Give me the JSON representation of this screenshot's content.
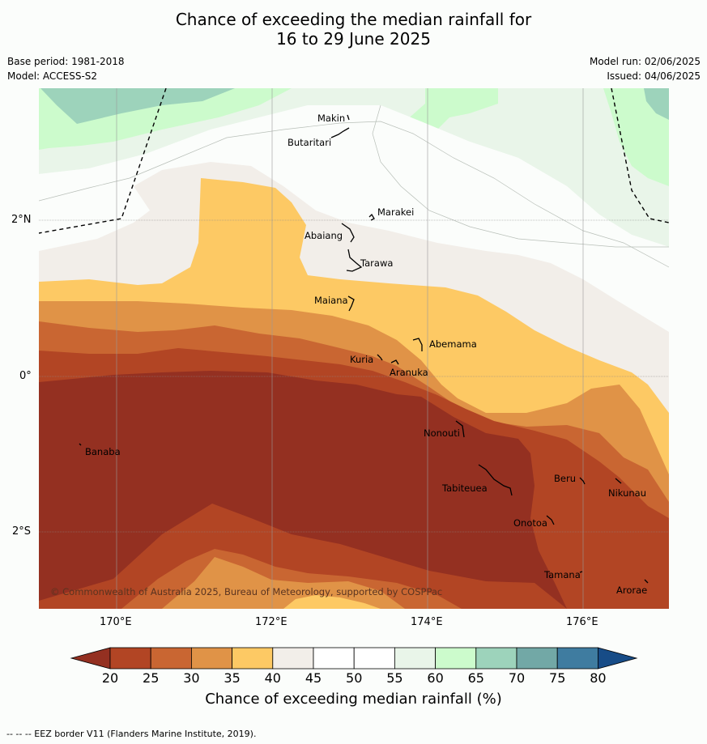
{
  "title": {
    "line1": "Chance of exceeding the median rainfall for",
    "line2": "16 to 29 June 2025"
  },
  "meta": {
    "base_period": "Base period: 1981-2018",
    "model": "Model: ACCESS-S2",
    "model_run": "Model run: 02/06/2025",
    "issued": "Issued: 04/06/2025"
  },
  "map": {
    "lon_labels": [
      "170°E",
      "172°E",
      "174°E",
      "176°E"
    ],
    "lat_labels": [
      "2°N",
      "0°",
      "2°S"
    ],
    "islands": [
      "Makin",
      "Butaritari",
      "Marakei",
      "Abaiang",
      "Tarawa",
      "Maiana",
      "Abemama",
      "Kuria",
      "Aranuka",
      "Nonouti",
      "Banaba",
      "Beru",
      "Tabiteuea",
      "Nikunau",
      "Onotoa",
      "Tamana",
      "Arorae"
    ],
    "copyright": "© Commonwealth of Australia 2025, Bureau of Meteorology, supported by COSPPac"
  },
  "colorbar": {
    "ticks": [
      "20",
      "25",
      "30",
      "35",
      "40",
      "45",
      "50",
      "55",
      "60",
      "65",
      "70",
      "75",
      "80"
    ],
    "colors": [
      "#943021",
      "#b24524",
      "#c96632",
      "#e09347",
      "#fdc964",
      "#f2eee9",
      "#ffffff",
      "#ffffff",
      "#e9f5e9",
      "#ccfbcc",
      "#9dd3bb",
      "#72a8a6",
      "#3f7ca0",
      "#174c87"
    ],
    "title": "Chance of exceeding median rainfall (%)"
  },
  "footer": "-- -- -- EEZ border V11 (Flanders Marine Institute, 2019)."
}
